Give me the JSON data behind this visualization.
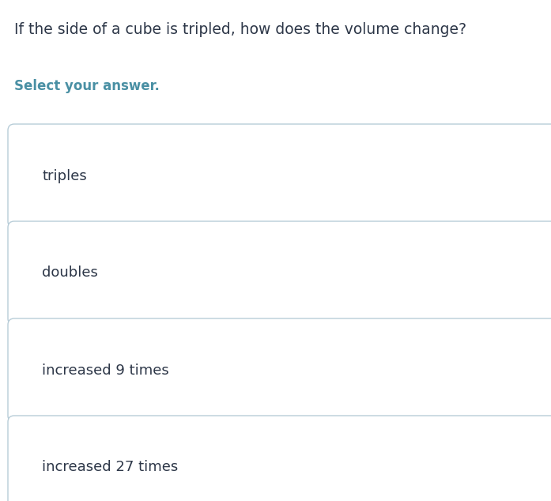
{
  "title": "If the side of a cube is tripled, how does the volume change?",
  "subtitle": "Select your answer.",
  "title_color": "#2d3748",
  "subtitle_color": "#4a90a4",
  "options": [
    "triples",
    "doubles",
    "increased 9 times",
    "increased 27 times"
  ],
  "option_text_color": "#2d3748",
  "box_face_color": "#ffffff",
  "box_edge_color": "#b8cdd8",
  "background_color": "#ffffff",
  "title_fontsize": 13.5,
  "subtitle_fontsize": 12,
  "option_fontsize": 13,
  "fig_width": 6.97,
  "fig_height": 6.34,
  "dpi": 100
}
